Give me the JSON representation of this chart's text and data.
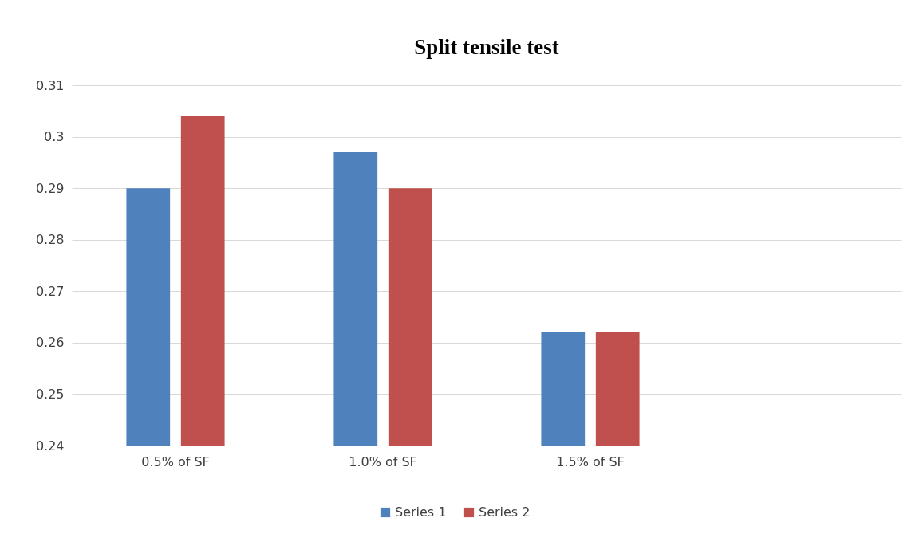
{
  "chart_data": {
    "type": "bar",
    "title": "Split tensile test",
    "categories": [
      "0.5% of SF",
      "1.0% of SF",
      "1.5% of SF",
      null
    ],
    "series": [
      {
        "name": "Series 1",
        "color": "#4f81bd",
        "values": [
          0.29,
          0.297,
          0.262,
          null
        ]
      },
      {
        "name": "Series 2",
        "color": "#c0504d",
        "values": [
          0.304,
          0.29,
          0.262,
          null
        ]
      }
    ],
    "ylim": [
      0.24,
      0.31
    ],
    "yticks": [
      0.24,
      0.25,
      0.26,
      0.27,
      0.28,
      0.29,
      0.3,
      0.31
    ],
    "grid": "y",
    "legend": "bottom"
  }
}
